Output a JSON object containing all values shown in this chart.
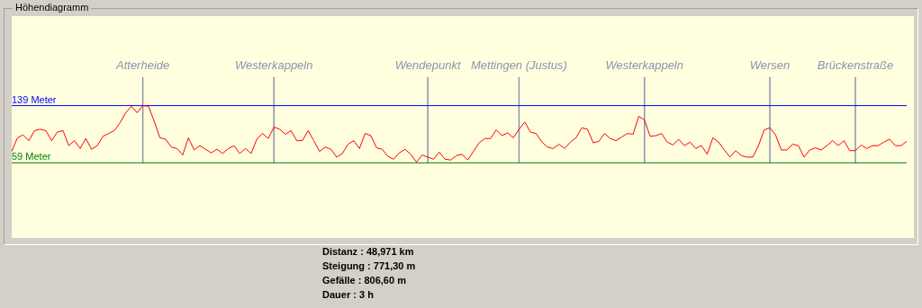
{
  "chart_data": {
    "type": "line",
    "title": "Höhendiagramm",
    "categories": [
      null,
      null,
      null,
      null,
      null,
      null,
      null,
      null,
      null,
      null,
      null,
      null,
      null,
      null,
      null,
      null,
      null,
      null,
      null,
      null,
      null,
      null,
      null,
      "Atterheide",
      null,
      null,
      null,
      null,
      null,
      null,
      null,
      null,
      null,
      null,
      null,
      null,
      null,
      null,
      null,
      null,
      null,
      null,
      null,
      null,
      null,
      null,
      "Westerkappeln",
      null,
      null,
      null,
      null,
      null,
      null,
      null,
      null,
      null,
      null,
      null,
      null,
      null,
      null,
      null,
      null,
      null,
      null,
      null,
      null,
      null,
      null,
      null,
      null,
      null,
      null,
      "Wendepunkt",
      null,
      null,
      null,
      null,
      null,
      null,
      null,
      null,
      null,
      null,
      null,
      null,
      null,
      null,
      null,
      "Mettingen (Justus)",
      null,
      null,
      null,
      null,
      null,
      null,
      null,
      null,
      null,
      null,
      null,
      null,
      null,
      null,
      null,
      null,
      null,
      null,
      null,
      null,
      null,
      "Westerkappeln",
      null,
      null,
      null,
      null,
      null,
      null,
      null,
      null,
      null,
      null,
      null,
      null,
      null,
      null,
      null,
      null,
      null,
      null,
      null,
      null,
      null,
      "Wersen",
      null,
      null,
      null,
      null,
      null,
      null,
      null,
      null,
      null,
      null,
      null,
      null,
      null,
      null,
      "Brückenstraße",
      null,
      null,
      null,
      null,
      null,
      null,
      null,
      null,
      null
    ],
    "series": [
      {
        "color": "#ff0000",
        "values": [
          75,
          94,
          98,
          90,
          104,
          106,
          104,
          90,
          102,
          104,
          83,
          90,
          79,
          93,
          78,
          83,
          96,
          100,
          104,
          115,
          129,
          138,
          129,
          139,
          138,
          117,
          94,
          92,
          81,
          79,
          70,
          94,
          77,
          83,
          78,
          73,
          78,
          72,
          79,
          83,
          72,
          79,
          72,
          92,
          100,
          93,
          109,
          106,
          99,
          104,
          90,
          90,
          104,
          90,
          75,
          81,
          78,
          67,
          72,
          85,
          90,
          79,
          100,
          97,
          80,
          78,
          68,
          64,
          73,
          78,
          71,
          60,
          70,
          67,
          64,
          74,
          64,
          63,
          69,
          71,
          63,
          75,
          87,
          93,
          93,
          105,
          97,
          101,
          94,
          106,
          116,
          102,
          100,
          88,
          81,
          79,
          85,
          79,
          88,
          94,
          108,
          106,
          87,
          89,
          100,
          93,
          90,
          95,
          100,
          99,
          124,
          119,
          96,
          97,
          100,
          88,
          84,
          92,
          83,
          88,
          79,
          83,
          71,
          94,
          88,
          77,
          67,
          76,
          69,
          67,
          67,
          83,
          105,
          108,
          98,
          77,
          77,
          85,
          83,
          67,
          77,
          80,
          77,
          83,
          90,
          83,
          90,
          76,
          76,
          84,
          79,
          83,
          83,
          88,
          92,
          83,
          83,
          89
        ]
      }
    ],
    "ylim": [
      -46,
      264
    ],
    "legend": false,
    "marker": "none",
    "line_style": "solid",
    "yticks": [
      {
        "value": 59,
        "label": "59 Meter"
      },
      {
        "value": 139,
        "label": "139 Meter"
      }
    ],
    "ref_lines": [
      {
        "axis": "y",
        "value": 139,
        "color": "#0000ff"
      },
      {
        "axis": "y",
        "value": 59,
        "color": "#008000"
      }
    ],
    "annotations": [
      "Distanz : 48,971 km",
      "Steigung : 771,30 m",
      "Gefälle : 806,60 m",
      "Dauer :  3 h"
    ]
  }
}
